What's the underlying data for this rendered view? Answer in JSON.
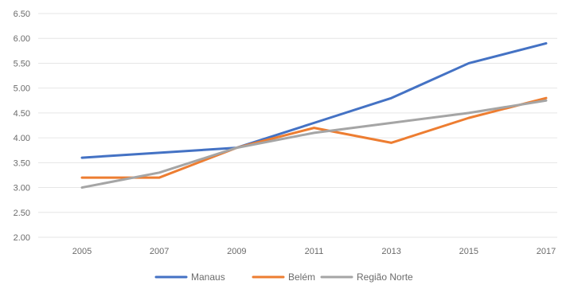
{
  "chart_data": {
    "type": "line",
    "x": [
      "2005",
      "2007",
      "2009",
      "2011",
      "2013",
      "2015",
      "2017"
    ],
    "y_ticks": [
      "2.00",
      "2.50",
      "3.00",
      "3.50",
      "4.00",
      "4.50",
      "5.00",
      "5.50",
      "6.00",
      "6.50"
    ],
    "ylim": [
      2.0,
      6.5
    ],
    "grid": true,
    "legend_position": "bottom",
    "series": [
      {
        "name": "Manaus",
        "color": "#4472c4",
        "values": [
          3.6,
          3.7,
          3.8,
          4.3,
          4.8,
          5.5,
          5.9
        ]
      },
      {
        "name": "Belém",
        "color": "#ed7d31",
        "values": [
          3.2,
          3.2,
          3.8,
          4.2,
          3.9,
          4.4,
          4.8
        ]
      },
      {
        "name": "Região Norte",
        "color": "#a5a5a5",
        "values": [
          3.0,
          3.3,
          3.8,
          4.1,
          4.3,
          4.5,
          4.75
        ]
      }
    ]
  }
}
